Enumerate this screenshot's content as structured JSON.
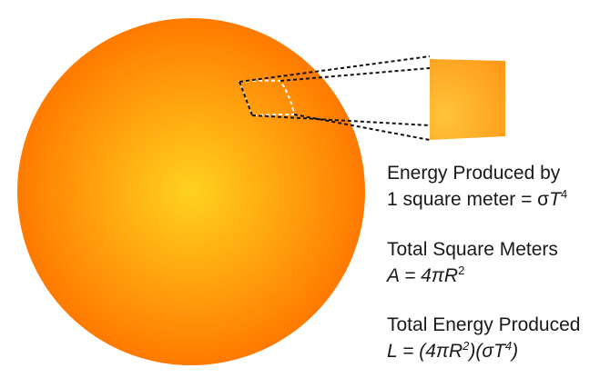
{
  "sections": [
    {
      "heading": "Energy Produced by",
      "expression_prefix": "1 square meter = σ",
      "expression_var": "T",
      "expression_exp": "4"
    },
    {
      "heading": "Total Square Meters",
      "lhs": "A",
      "equals": " = 4π",
      "var": "R",
      "exp": "2"
    },
    {
      "heading": "Total Energy Produced",
      "lhs": "L",
      "eq_open": " = (4π",
      "var_r": "R",
      "exp_r": "2",
      "mid": ")(σ",
      "var_t": "T",
      "exp_t": "4",
      "close": ")"
    }
  ],
  "colors": {
    "sphere_center": "#ffd21f",
    "sphere_edge": "#ff7a00",
    "patch_light": "#ffc43a",
    "patch_dark": "#ff9a1a",
    "dashed_line": "#111111",
    "patch_outline": "#ffffff",
    "text": "#1a1a1a"
  }
}
